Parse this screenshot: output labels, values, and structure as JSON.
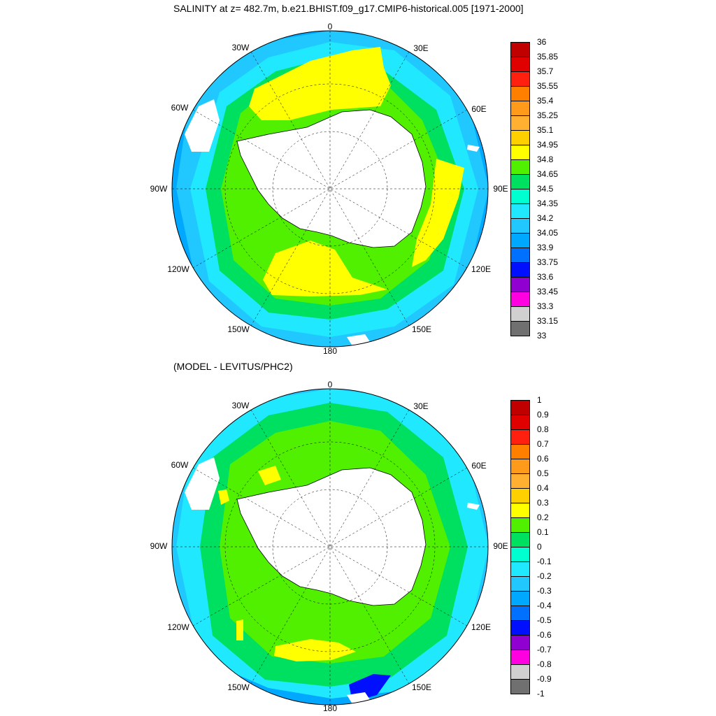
{
  "titles": {
    "top": "SALINITY at z= 482.7m, b.e21.BHIST.f09_g17.CMIP6-historical.005 [1971-2000]",
    "bottom": "(MODEL - LEVITUS/PHC2)"
  },
  "lon_labels": [
    "0",
    "30E",
    "60E",
    "90E",
    "120E",
    "150E",
    "180",
    "150W",
    "120W",
    "90W",
    "60W",
    "30W"
  ],
  "colorbars": {
    "top": {
      "labels": [
        "36",
        "35.85",
        "35.7",
        "35.55",
        "35.4",
        "35.25",
        "35.1",
        "34.95",
        "34.8",
        "34.65",
        "34.5",
        "34.35",
        "34.2",
        "34.05",
        "33.9",
        "33.75",
        "33.6",
        "33.45",
        "33.3",
        "33.15",
        "33"
      ],
      "colors": [
        "#c00000",
        "#e00000",
        "#ff2010",
        "#ff8000",
        "#ff9a1a",
        "#ffb030",
        "#ffd000",
        "#ffff00",
        "#50f000",
        "#00e060",
        "#00ffd0",
        "#20e8ff",
        "#20c8ff",
        "#00a8ff",
        "#0070ff",
        "#0010ff",
        "#9000d0",
        "#ff00e0",
        "#d0d0d0",
        "#707070"
      ]
    },
    "bottom": {
      "labels": [
        "1",
        "0.9",
        "0.8",
        "0.7",
        "0.6",
        "0.5",
        "0.4",
        "0.3",
        "0.2",
        "0.1",
        "0",
        "-0.1",
        "-0.2",
        "-0.3",
        "-0.4",
        "-0.5",
        "-0.6",
        "-0.7",
        "-0.8",
        "-0.9",
        "-1"
      ],
      "colors": [
        "#c00000",
        "#e00000",
        "#ff2010",
        "#ff8000",
        "#ff9a1a",
        "#ffb030",
        "#ffd000",
        "#ffff00",
        "#50f000",
        "#00e060",
        "#00ffd0",
        "#20e8ff",
        "#20c8ff",
        "#00a8ff",
        "#0070ff",
        "#0010ff",
        "#9000d0",
        "#ff00e0",
        "#d0d0d0",
        "#707070"
      ]
    }
  }
}
